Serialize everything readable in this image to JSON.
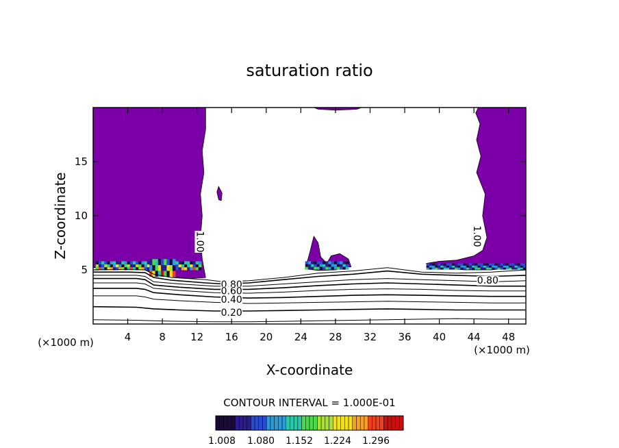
{
  "chart_data": {
    "type": "contour",
    "title": "saturation ratio",
    "xlabel": "X-coordinate",
    "ylabel": "Z-coordinate",
    "x_unit_left": "(×1000 m)",
    "x_unit_right": "(×1000 m)",
    "xlim": [
      0,
      50
    ],
    "ylim": [
      0,
      20
    ],
    "x_ticks": [
      4,
      8,
      12,
      16,
      20,
      24,
      28,
      32,
      36,
      40,
      44,
      48
    ],
    "y_ticks": [
      5,
      10,
      15
    ],
    "contour_interval_text": "CONTOUR INTERVAL = 1.000E-01",
    "colorbar": {
      "labels": [
        "1.008",
        "1.080",
        "1.152",
        "1.224",
        "1.296"
      ],
      "min": 0.99,
      "max": 1.33
    },
    "contour_labels": [
      {
        "text": "1.00",
        "x": 12.3,
        "z": 7.6,
        "rotate": 90
      },
      {
        "text": "1.00",
        "x": 44.3,
        "z": 8.1,
        "rotate": 90
      },
      {
        "text": "0.80",
        "x": 16.0,
        "z": 3.6,
        "rotate": 0
      },
      {
        "text": "0.60",
        "x": 16.0,
        "z": 3.0,
        "rotate": 0
      },
      {
        "text": "0.40",
        "x": 16.0,
        "z": 2.2,
        "rotate": 0
      },
      {
        "text": "0.20",
        "x": 16.0,
        "z": 1.0,
        "rotate": 0
      },
      {
        "text": "0.80",
        "x": 45.6,
        "z": 4.0,
        "rotate": 0
      }
    ],
    "isolines": [
      {
        "level": 0.9,
        "points": [
          [
            0,
            5.0
          ],
          [
            4,
            5.05
          ],
          [
            6,
            5.0
          ],
          [
            7,
            4.6
          ],
          [
            9,
            4.3
          ],
          [
            13,
            4.1
          ],
          [
            15,
            3.9
          ],
          [
            18,
            4.0
          ],
          [
            22,
            4.3
          ],
          [
            26,
            4.7
          ],
          [
            30,
            4.9
          ],
          [
            34,
            5.2
          ],
          [
            38,
            4.8
          ],
          [
            42,
            4.7
          ],
          [
            46,
            4.8
          ],
          [
            50,
            5.0
          ]
        ]
      },
      {
        "level": 0.8,
        "points": [
          [
            0,
            4.8
          ],
          [
            4,
            4.8
          ],
          [
            6,
            4.75
          ],
          [
            7,
            4.3
          ],
          [
            9,
            4.05
          ],
          [
            13,
            3.8
          ],
          [
            15,
            3.7
          ],
          [
            18,
            3.8
          ],
          [
            22,
            4.1
          ],
          [
            26,
            4.4
          ],
          [
            30,
            4.6
          ],
          [
            34,
            4.9
          ],
          [
            38,
            4.6
          ],
          [
            42,
            4.5
          ],
          [
            46,
            4.4
          ],
          [
            50,
            4.5
          ]
        ]
      },
      {
        "level": 0.7,
        "points": [
          [
            0,
            4.5
          ],
          [
            5,
            4.5
          ],
          [
            6,
            4.4
          ],
          [
            7,
            3.9
          ],
          [
            10,
            3.7
          ],
          [
            14,
            3.5
          ],
          [
            18,
            3.5
          ],
          [
            22,
            3.7
          ],
          [
            26,
            3.9
          ],
          [
            30,
            4.1
          ],
          [
            34,
            4.2
          ],
          [
            38,
            4.1
          ],
          [
            42,
            4.0
          ],
          [
            46,
            3.9
          ],
          [
            50,
            4.0
          ]
        ]
      },
      {
        "level": 0.6,
        "points": [
          [
            0,
            4.2
          ],
          [
            5,
            4.2
          ],
          [
            6,
            4.1
          ],
          [
            7,
            3.6
          ],
          [
            10,
            3.4
          ],
          [
            14,
            3.2
          ],
          [
            18,
            3.2
          ],
          [
            22,
            3.35
          ],
          [
            26,
            3.55
          ],
          [
            30,
            3.7
          ],
          [
            34,
            3.8
          ],
          [
            38,
            3.7
          ],
          [
            42,
            3.6
          ],
          [
            46,
            3.5
          ],
          [
            50,
            3.5
          ]
        ]
      },
      {
        "level": 0.5,
        "points": [
          [
            0,
            3.8
          ],
          [
            5,
            3.8
          ],
          [
            6,
            3.7
          ],
          [
            7,
            3.3
          ],
          [
            10,
            3.1
          ],
          [
            14,
            2.9
          ],
          [
            18,
            2.85
          ],
          [
            22,
            2.95
          ],
          [
            26,
            3.1
          ],
          [
            30,
            3.2
          ],
          [
            34,
            3.25
          ],
          [
            38,
            3.2
          ],
          [
            42,
            3.1
          ],
          [
            46,
            3.05
          ],
          [
            50,
            3.05
          ]
        ]
      },
      {
        "level": 0.4,
        "points": [
          [
            0,
            3.3
          ],
          [
            5,
            3.3
          ],
          [
            6,
            3.2
          ],
          [
            7,
            2.9
          ],
          [
            10,
            2.7
          ],
          [
            14,
            2.5
          ],
          [
            18,
            2.4
          ],
          [
            22,
            2.45
          ],
          [
            26,
            2.55
          ],
          [
            30,
            2.65
          ],
          [
            34,
            2.7
          ],
          [
            38,
            2.65
          ],
          [
            42,
            2.6
          ],
          [
            46,
            2.55
          ],
          [
            50,
            2.55
          ]
        ]
      },
      {
        "level": 0.3,
        "points": [
          [
            0,
            2.6
          ],
          [
            5,
            2.6
          ],
          [
            6,
            2.5
          ],
          [
            7,
            2.3
          ],
          [
            10,
            2.15
          ],
          [
            14,
            2.0
          ],
          [
            18,
            1.9
          ],
          [
            22,
            1.95
          ],
          [
            26,
            2.0
          ],
          [
            30,
            2.05
          ],
          [
            34,
            2.1
          ],
          [
            38,
            2.05
          ],
          [
            42,
            2.0
          ],
          [
            46,
            1.95
          ],
          [
            50,
            1.95
          ]
        ]
      },
      {
        "level": 0.2,
        "points": [
          [
            0,
            1.6
          ],
          [
            5,
            1.55
          ],
          [
            7,
            1.4
          ],
          [
            10,
            1.3
          ],
          [
            14,
            1.2
          ],
          [
            18,
            1.2
          ],
          [
            22,
            1.25
          ],
          [
            26,
            1.3
          ],
          [
            30,
            1.35
          ],
          [
            34,
            1.4
          ],
          [
            38,
            1.35
          ],
          [
            42,
            1.3
          ],
          [
            46,
            1.3
          ],
          [
            50,
            1.3
          ]
        ]
      },
      {
        "level": 0.1,
        "points": [
          [
            0,
            0.4
          ],
          [
            5,
            0.35
          ],
          [
            7,
            0.3
          ],
          [
            10,
            0.25
          ],
          [
            14,
            0.2
          ],
          [
            18,
            0.2
          ],
          [
            22,
            0.25
          ],
          [
            26,
            0.3
          ],
          [
            30,
            0.35
          ],
          [
            34,
            0.4
          ],
          [
            38,
            0.45
          ],
          [
            42,
            0.5
          ],
          [
            46,
            0.45
          ],
          [
            50,
            0.45
          ]
        ]
      }
    ],
    "saturated_regions": [
      {
        "name": "left",
        "points": [
          [
            0,
            20
          ],
          [
            13.0,
            20
          ],
          [
            13.0,
            18
          ],
          [
            12.6,
            16
          ],
          [
            12.8,
            14
          ],
          [
            12.4,
            12
          ],
          [
            12.6,
            10
          ],
          [
            12.4,
            8
          ],
          [
            12.6,
            6
          ],
          [
            13,
            4.3
          ],
          [
            11,
            4.2
          ],
          [
            9,
            4.4
          ],
          [
            7,
            4.7
          ],
          [
            6,
            5.0
          ],
          [
            4,
            5.1
          ],
          [
            0,
            5.2
          ]
        ]
      },
      {
        "name": "right",
        "points": [
          [
            44.5,
            20
          ],
          [
            50,
            20
          ],
          [
            50,
            5.3
          ],
          [
            46,
            5.0
          ],
          [
            43,
            5.0
          ],
          [
            39,
            5.2
          ],
          [
            38.5,
            5.6
          ],
          [
            40,
            5.8
          ],
          [
            42,
            5.9
          ],
          [
            44,
            6.3
          ],
          [
            45,
            6.8
          ],
          [
            45.5,
            8.0
          ],
          [
            45.0,
            10.0
          ],
          [
            45.3,
            12.0
          ],
          [
            44.3,
            14.0
          ],
          [
            44.8,
            15.5
          ],
          [
            44.3,
            17.0
          ],
          [
            44.7,
            18.5
          ],
          [
            44.2,
            19.5
          ]
        ]
      },
      {
        "name": "top",
        "points": [
          [
            25.5,
            20
          ],
          [
            31,
            20
          ],
          [
            30.5,
            19.85
          ],
          [
            28,
            19.75
          ],
          [
            26,
            19.85
          ]
        ]
      },
      {
        "name": "peak-24",
        "points": [
          [
            24.5,
            5.1
          ],
          [
            25.0,
            6.5
          ],
          [
            25.5,
            8.1
          ],
          [
            26.0,
            7.5
          ],
          [
            26.3,
            6.2
          ],
          [
            27,
            5.6
          ],
          [
            27.5,
            6.3
          ],
          [
            28.5,
            6.5
          ],
          [
            29.5,
            6.0
          ],
          [
            29.8,
            5.3
          ],
          [
            28,
            5.0
          ],
          [
            26,
            4.95
          ]
        ]
      },
      {
        "name": "blob-15",
        "points": [
          [
            14.3,
            12.2
          ],
          [
            14.5,
            12.7
          ],
          [
            14.9,
            12.1
          ],
          [
            14.8,
            11.4
          ],
          [
            14.5,
            11.5
          ]
        ]
      }
    ],
    "enhanced_bands": [
      {
        "x0": 0.3,
        "x1": 12.5,
        "z0": 5.0,
        "z1": 5.8,
        "intensity": 0.9
      },
      {
        "x0": 6.5,
        "x1": 9.5,
        "z0": 4.4,
        "z1": 6.0,
        "intensity": 1.0
      },
      {
        "x0": 24.5,
        "x1": 29.5,
        "z0": 5.05,
        "z1": 5.8,
        "intensity": 0.55
      },
      {
        "x0": 38.5,
        "x1": 50,
        "z0": 5.05,
        "z1": 5.6,
        "intensity": 0.5
      }
    ],
    "colors": {
      "saturated_fill": "#7c00a8",
      "colormap": [
        "#1a0a3a",
        "#2a1c8a",
        "#2c4cd0",
        "#2a9ad8",
        "#28c8a8",
        "#4cd84c",
        "#a8e030",
        "#f0e020",
        "#f8a020",
        "#f04020",
        "#c81010"
      ]
    }
  }
}
